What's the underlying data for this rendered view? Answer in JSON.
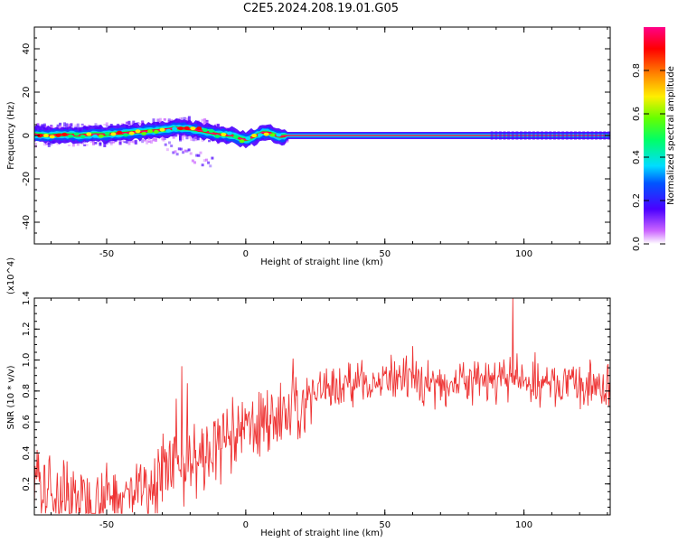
{
  "title": "C2E5.2024.208.19.01.G05",
  "chart_data": [
    {
      "type": "heatmap",
      "xlabel": "Height of straight line (km)",
      "ylabel": "Frequency (Hz)",
      "xlim": [
        -76,
        131
      ],
      "ylim": [
        -50,
        50
      ],
      "xticks": [
        "-50",
        "0",
        "50",
        "100"
      ],
      "xtick_values": [
        -50,
        0,
        50,
        100
      ],
      "yticks": [
        "-40",
        "-20",
        "0",
        "20",
        "40"
      ],
      "ytick_values": [
        -40,
        -20,
        0,
        20,
        40
      ],
      "grid": false,
      "colorbar": {
        "label": "Normalized spectral amplitude",
        "range": [
          0,
          1
        ],
        "ticks": [
          "0.0",
          "0.2",
          "0.4",
          "0.6",
          "0.8"
        ],
        "tick_values": [
          0,
          0.2,
          0.4,
          0.6,
          0.8
        ],
        "colors": [
          "#ffffff",
          "#cc66ff",
          "#4b00ff",
          "#0055ff",
          "#00ddff",
          "#00ff66",
          "#66ff00",
          "#ffee00",
          "#ff8800",
          "#ff0000",
          "#ff0088"
        ]
      },
      "ridge": {
        "x": [
          -76,
          -70,
          -65,
          -60,
          -55,
          -50,
          -45,
          -40,
          -35,
          -30,
          -25,
          -20,
          -15,
          -10,
          -5,
          -2,
          0,
          3,
          6,
          9,
          12,
          15,
          20,
          40,
          60,
          80,
          100,
          120,
          131
        ],
        "y": [
          0.5,
          0,
          0.5,
          0,
          0.5,
          0.5,
          1,
          1.5,
          2,
          2.5,
          3.5,
          3,
          2,
          0.5,
          0,
          -1.5,
          -2,
          -0.5,
          1.5,
          1,
          -0.5,
          0,
          0,
          0,
          0,
          0,
          0,
          0,
          0
        ]
      }
    },
    {
      "type": "line",
      "xlabel": "Height of straight line (km)",
      "ylabel": "SNR (10 * v/v)",
      "y_multiplier": "(x10^4)",
      "xlim": [
        -76,
        131
      ],
      "ylim": [
        0,
        1.4
      ],
      "xticks": [
        "-50",
        "0",
        "50",
        "100"
      ],
      "xtick_values": [
        -50,
        0,
        50,
        100
      ],
      "yticks": [
        "0.2",
        "0.4",
        "0.6",
        "0.8",
        "1.0",
        "1.2",
        "1.4"
      ],
      "ytick_values": [
        0.2,
        0.4,
        0.6,
        0.8,
        1.0,
        1.2,
        1.4
      ],
      "grid": false,
      "series": [
        {
          "color": "#ee3333",
          "x": [
            -76,
            -70,
            -65,
            -60,
            -55,
            -50,
            -45,
            -40,
            -35,
            -30,
            -25,
            -20,
            -15,
            -10,
            -5,
            0,
            5,
            10,
            15,
            20,
            25,
            30,
            35,
            40,
            50,
            60,
            70,
            80,
            90,
            95,
            100,
            110,
            120,
            131
          ],
          "y": [
            0.12,
            0.15,
            0.12,
            0.12,
            0.1,
            0.12,
            0.12,
            0.15,
            0.2,
            0.25,
            0.3,
            0.35,
            0.35,
            0.45,
            0.5,
            0.55,
            0.6,
            0.62,
            0.62,
            0.7,
            0.8,
            0.82,
            0.84,
            0.86,
            0.86,
            0.86,
            0.85,
            0.86,
            0.86,
            0.88,
            0.85,
            0.84,
            0.83,
            0.82
          ],
          "spikes": [
            {
              "x": -23,
              "y": 0.96
            },
            {
              "x": -21,
              "y": 0.85
            },
            {
              "x": -25,
              "y": 0.75
            },
            {
              "x": 17,
              "y": 1.01
            },
            {
              "x": 60,
              "y": 1.09
            },
            {
              "x": 96,
              "y": 1.4
            },
            {
              "x": 95,
              "y": 1.02
            },
            {
              "x": 104,
              "y": 1.05
            },
            {
              "x": -75,
              "y": 0.42
            }
          ]
        }
      ]
    }
  ]
}
